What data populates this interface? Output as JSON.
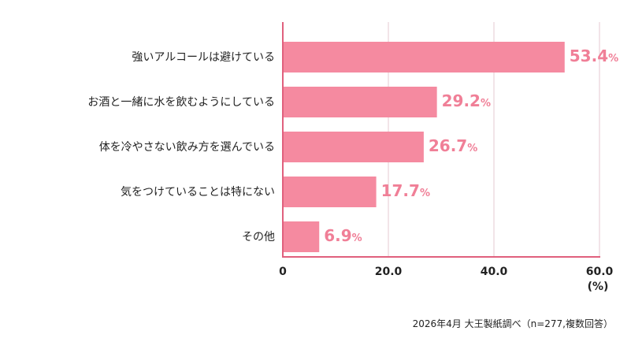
{
  "chart_data": {
    "type": "bar",
    "orientation": "horizontal",
    "categories": [
      "強いアルコールは避けている",
      "お酒と一緒に水を飲むようにしている",
      "体を冷やさない飲み方を選んでいる",
      "気をつけていることは特にない",
      "その他"
    ],
    "values": [
      53.4,
      29.2,
      26.7,
      17.7,
      6.9
    ],
    "value_labels": [
      "53.4",
      "29.2",
      "26.7",
      "17.7",
      "6.9"
    ],
    "value_unit": "%",
    "xlim": [
      0,
      60
    ],
    "ticks": [
      "0",
      "20.0",
      "40.0",
      "60.0"
    ],
    "tick_values": [
      0,
      20,
      40,
      60
    ],
    "axis_unit": "(%)",
    "grid": true,
    "bar_color": "#f58aa0",
    "label_color": "#f07f97",
    "grid_color": "#e6c9d0",
    "axis_color": "#e0607d"
  },
  "source_note": "2026年4月 大王製紙調べ（n=277,複数回答）"
}
